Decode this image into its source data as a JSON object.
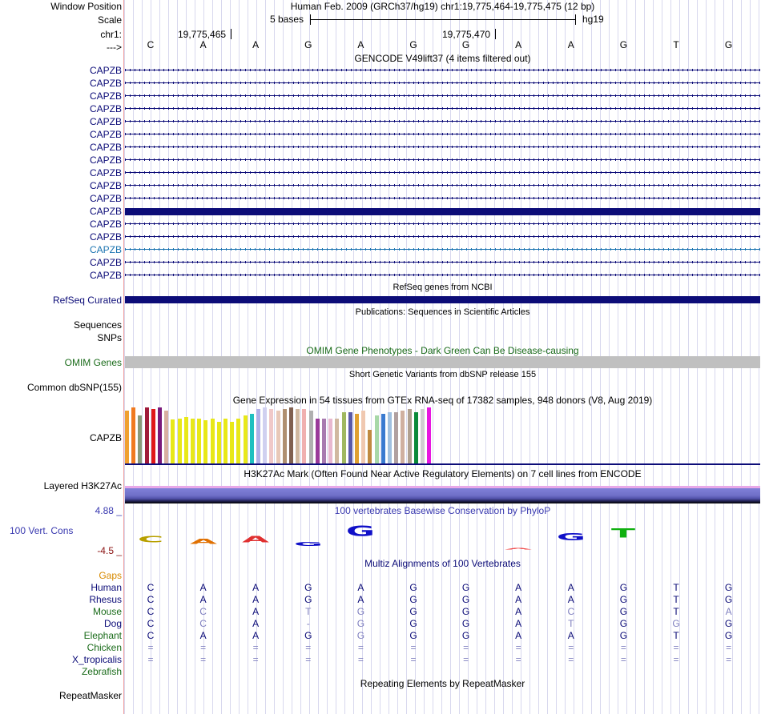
{
  "header": {
    "window_position_label": "Window Position",
    "window_position_text": "Human Feb. 2009 (GRCh37/hg19)   chr1:19,775,464-19,775,475 (12 bp)",
    "scale_label": "Scale",
    "scale_text": "5 bases",
    "scale_db": "hg19",
    "chrom_label": "chr1:",
    "coord_left": "19,775,465",
    "coord_right": "19,775,470",
    "arrow_label": "--->",
    "bases": [
      "C",
      "A",
      "A",
      "G",
      "A",
      "G",
      "G",
      "A",
      "A",
      "G",
      "T",
      "G"
    ]
  },
  "gencode": {
    "title": "GENCODE V49lift37 (4 items filtered out)",
    "tracks": [
      {
        "name": "CAPZB",
        "style": "strand"
      },
      {
        "name": "CAPZB",
        "style": "strand"
      },
      {
        "name": "CAPZB",
        "style": "strand"
      },
      {
        "name": "CAPZB",
        "style": "strand"
      },
      {
        "name": "CAPZB",
        "style": "strand"
      },
      {
        "name": "CAPZB",
        "style": "strand"
      },
      {
        "name": "CAPZB",
        "style": "strand"
      },
      {
        "name": "CAPZB",
        "style": "strand"
      },
      {
        "name": "CAPZB",
        "style": "strand"
      },
      {
        "name": "CAPZB",
        "style": "strand"
      },
      {
        "name": "CAPZB",
        "style": "strand"
      },
      {
        "name": "CAPZB",
        "style": "solid"
      },
      {
        "name": "CAPZB",
        "style": "strand"
      },
      {
        "name": "CAPZB",
        "style": "strand"
      },
      {
        "name": "CAPZB",
        "style": "cyan"
      },
      {
        "name": "CAPZB",
        "style": "strand"
      },
      {
        "name": "CAPZB",
        "style": "strand"
      }
    ]
  },
  "refseq": {
    "title": "RefSeq genes from NCBI",
    "label": "RefSeq Curated"
  },
  "publications": {
    "title": "Publications: Sequences in Scientific Articles",
    "label1": "Sequences",
    "label2": "SNPs"
  },
  "omim": {
    "title": "OMIM Gene Phenotypes - Dark Green Can Be Disease-causing",
    "label": "OMIM Genes"
  },
  "dbsnp": {
    "title": "Short Genetic Variants from dbSNP release 155",
    "label": "Common dbSNP(155)"
  },
  "gtex": {
    "title": "Gene Expression in 54 tissues from GTEx RNA-seq of 17382 samples, 948 donors (V8, Aug 2019)",
    "label": "CAPZB",
    "bars": [
      {
        "value": 66,
        "color": "#f0a030"
      },
      {
        "value": 70,
        "color": "#f07a20"
      },
      {
        "value": 60,
        "color": "#8a9a7a"
      },
      {
        "value": 70,
        "color": "#a01a3a"
      },
      {
        "value": 68,
        "color": "#e01818"
      },
      {
        "value": 70,
        "color": "#7a1a7a"
      },
      {
        "value": 66,
        "color": "#d8b0a0"
      },
      {
        "value": 55,
        "color": "#e8e818"
      },
      {
        "value": 56,
        "color": "#e8e818"
      },
      {
        "value": 58,
        "color": "#e8e818"
      },
      {
        "value": 56,
        "color": "#e8e818"
      },
      {
        "value": 56,
        "color": "#e8e818"
      },
      {
        "value": 54,
        "color": "#e8e818"
      },
      {
        "value": 56,
        "color": "#e8e818"
      },
      {
        "value": 52,
        "color": "#e8e818"
      },
      {
        "value": 56,
        "color": "#e8e818"
      },
      {
        "value": 52,
        "color": "#e8e818"
      },
      {
        "value": 56,
        "color": "#e8e818"
      },
      {
        "value": 60,
        "color": "#e8e818"
      },
      {
        "value": 62,
        "color": "#20c0c0"
      },
      {
        "value": 68,
        "color": "#b0b0e8"
      },
      {
        "value": 70,
        "color": "#d0d0f0"
      },
      {
        "value": 68,
        "color": "#f0c8c8"
      },
      {
        "value": 66,
        "color": "#e8c8b8"
      },
      {
        "value": 68,
        "color": "#b09070"
      },
      {
        "value": 70,
        "color": "#806050"
      },
      {
        "value": 68,
        "color": "#d0b8a0"
      },
      {
        "value": 68,
        "color": "#f0b0b0"
      },
      {
        "value": 66,
        "color": "#b0b0b0"
      },
      {
        "value": 56,
        "color": "#9a3a9a"
      },
      {
        "value": 56,
        "color": "#a87ab0"
      },
      {
        "value": 56,
        "color": "#e8b8d0"
      },
      {
        "value": 56,
        "color": "#d0b8a0"
      },
      {
        "value": 64,
        "color": "#a0b860"
      },
      {
        "value": 64,
        "color": "#5a5aa8"
      },
      {
        "value": 62,
        "color": "#e0a030"
      },
      {
        "value": 66,
        "color": "#f0c8b0"
      },
      {
        "value": 42,
        "color": "#c08a40"
      },
      {
        "value": 60,
        "color": "#a8d8a8"
      },
      {
        "value": 62,
        "color": "#3a7ad0"
      },
      {
        "value": 64,
        "color": "#a0c0e0"
      },
      {
        "value": 64,
        "color": "#b0a0a0"
      },
      {
        "value": 66,
        "color": "#d0b0a0"
      },
      {
        "value": 68,
        "color": "#b0a090"
      },
      {
        "value": 64,
        "color": "#0a8a3a"
      },
      {
        "value": 68,
        "color": "#d0d0d0"
      },
      {
        "value": 70,
        "color": "#e818e0"
      }
    ]
  },
  "h3k27ac": {
    "title": "H3K27Ac Mark (Often Found Near Active Regulatory Elements) on 7 cell lines from ENCODE",
    "label": "Layered H3K27Ac"
  },
  "conservation": {
    "title": "100 vertebrates Basewise Conservation by PhyloP",
    "label": "100 Vert. Cons",
    "ymax": "4.88 _",
    "ymin": "-4.5 _",
    "logo": [
      {
        "base": "C",
        "color": "#b8a000",
        "scale": 0.6
      },
      {
        "base": "A",
        "color": "#e07000",
        "scale": 0.5
      },
      {
        "base": "A",
        "color": "#e03030",
        "scale": 0.6
      },
      {
        "base": "G",
        "color": "#1010c8",
        "scale": 0.4
      },
      {
        "base": "G",
        "color": "#1010c8",
        "scale": 1.0
      },
      {
        "base": "",
        "color": "#ffffff",
        "scale": 0
      },
      {
        "base": "",
        "color": "#ffffff",
        "scale": 0
      },
      {
        "base": "A",
        "color": "#f04040",
        "scale": 0.15
      },
      {
        "base": "G",
        "color": "#1010c8",
        "scale": 0.7
      },
      {
        "base": "T",
        "color": "#10b010",
        "scale": 0.9
      },
      {
        "base": "",
        "color": "#ffffff",
        "scale": 0
      },
      {
        "base": "",
        "color": "#ffffff",
        "scale": 0
      }
    ]
  },
  "multiz": {
    "title": "Multiz Alignments of 100 Vertebrates",
    "gaps_label": "Gaps",
    "species": [
      {
        "name": "Human",
        "color": "#0c0c78",
        "seq": [
          "C",
          "A",
          "A",
          "G",
          "A",
          "G",
          "G",
          "A",
          "A",
          "G",
          "T",
          "G"
        ]
      },
      {
        "name": "Rhesus",
        "color": "#0c0c78",
        "seq": [
          "C",
          "A",
          "A",
          "G",
          "A",
          "G",
          "G",
          "A",
          "A",
          "G",
          "T",
          "G"
        ]
      },
      {
        "name": "Mouse",
        "color": "#1a6b1a",
        "seq": [
          "C",
          "C",
          "A",
          "T",
          "G",
          "G",
          "G",
          "A",
          "C",
          "G",
          "T",
          "A"
        ]
      },
      {
        "name": "Dog",
        "color": "#0c0c78",
        "seq": [
          "C",
          "C",
          "A",
          "-",
          "G",
          "G",
          "G",
          "A",
          "T",
          "G",
          "G",
          "G"
        ]
      },
      {
        "name": "Elephant",
        "color": "#1a6b1a",
        "seq": [
          "C",
          "A",
          "A",
          "G",
          "G",
          "G",
          "G",
          "A",
          "A",
          "G",
          "T",
          "G"
        ]
      },
      {
        "name": "Chicken",
        "color": "#1a6b1a",
        "seq": [
          "=",
          "=",
          "=",
          "=",
          "=",
          "=",
          "=",
          "=",
          "=",
          "=",
          "=",
          "="
        ]
      },
      {
        "name": "X_tropicalis",
        "color": "#0c0c78",
        "seq": [
          "=",
          "=",
          "=",
          "=",
          "=",
          "=",
          "=",
          "=",
          "=",
          "=",
          "=",
          "="
        ]
      },
      {
        "name": "Zebrafish",
        "color": "#1a6b1a",
        "seq": [
          "",
          "",
          "",
          "",
          "",
          "",
          "",
          "",
          "",
          "",
          "",
          ""
        ]
      }
    ],
    "mismatch": [
      [
        false,
        false,
        false,
        false,
        false,
        false,
        false,
        false,
        false,
        false,
        false,
        false
      ],
      [
        false,
        false,
        false,
        false,
        false,
        false,
        false,
        false,
        false,
        false,
        false,
        false
      ],
      [
        false,
        true,
        false,
        true,
        true,
        false,
        false,
        false,
        true,
        false,
        false,
        true
      ],
      [
        false,
        true,
        false,
        true,
        true,
        false,
        false,
        false,
        true,
        false,
        true,
        false
      ],
      [
        false,
        false,
        false,
        false,
        true,
        false,
        false,
        false,
        false,
        false,
        false,
        false
      ],
      [
        true,
        true,
        true,
        true,
        true,
        true,
        true,
        true,
        true,
        true,
        true,
        true
      ],
      [
        true,
        true,
        true,
        true,
        true,
        true,
        true,
        true,
        true,
        true,
        true,
        true
      ],
      [
        false,
        false,
        false,
        false,
        false,
        false,
        false,
        false,
        false,
        false,
        false,
        false
      ]
    ]
  },
  "repeatmasker": {
    "title": "Repeating Elements by RepeatMasker",
    "label": "RepeatMasker"
  },
  "colors": {
    "dark_blue": "#0c0c78",
    "omim_gray": "#c0c0c0",
    "h3_purple": "#7070c8"
  }
}
